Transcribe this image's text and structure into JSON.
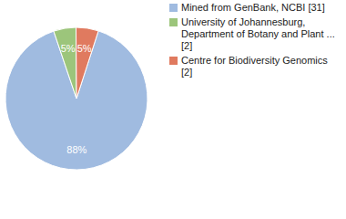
{
  "chart_data": {
    "type": "pie",
    "categories": [
      "Mined from GenBank, NCBI [31]",
      "University of Johannesburg, Department of Botany and Plant ... [2]",
      "Centre for Biodiversity Genomics [2]"
    ],
    "values": [
      88,
      5,
      5
    ],
    "value_labels": [
      "88%",
      "5%",
      "5%"
    ],
    "colors": [
      "#a0bbe0",
      "#9cc57b",
      "#e07a5f"
    ],
    "data_labels": true,
    "legend": "right"
  }
}
